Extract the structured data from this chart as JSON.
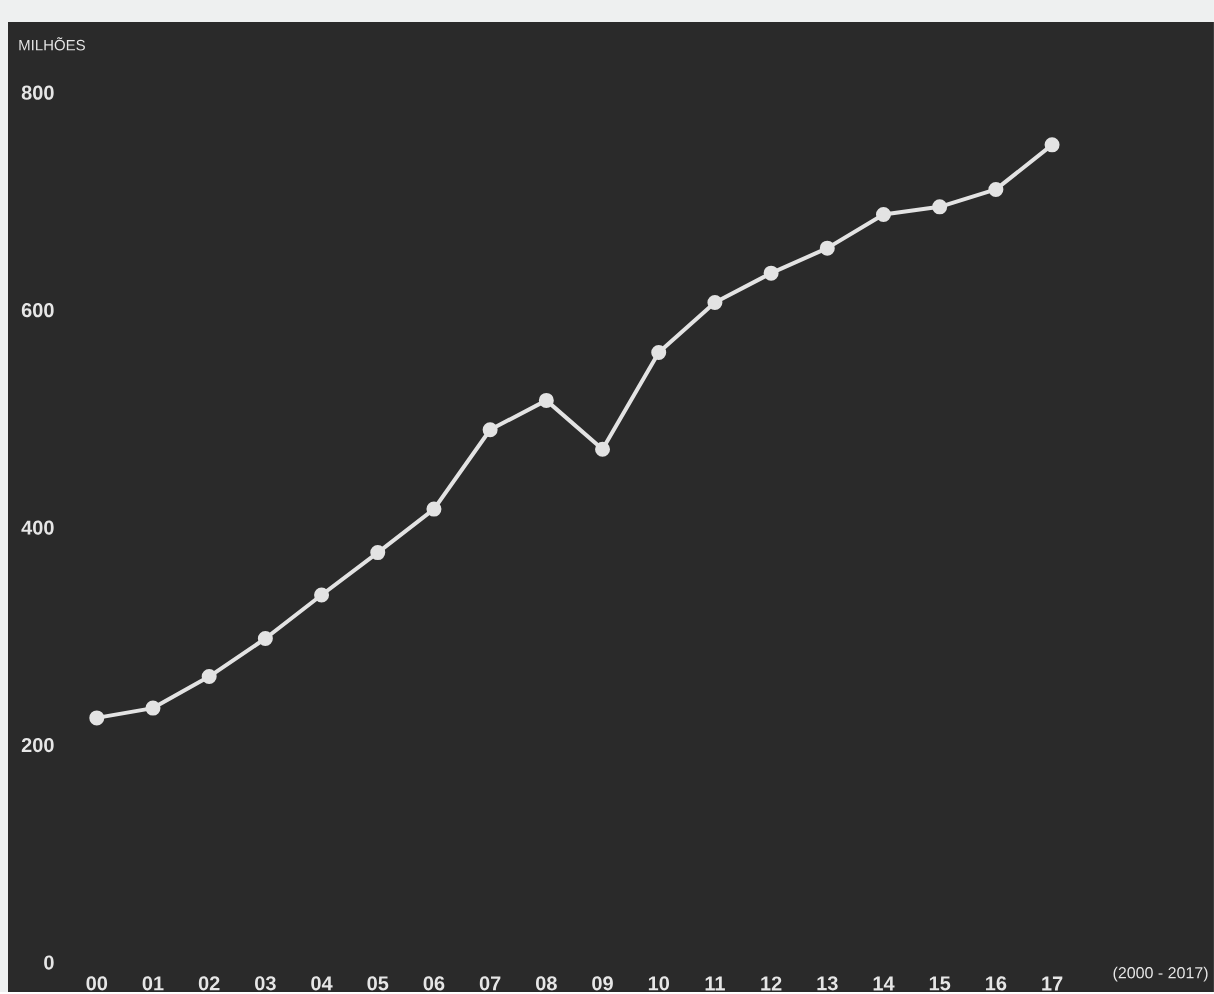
{
  "chart_data": {
    "type": "line",
    "ylabel": "MILHÕES",
    "annotations": [
      "(2000 - 2017)"
    ],
    "categories": [
      "00",
      "01",
      "02",
      "03",
      "04",
      "05",
      "06",
      "07",
      "08",
      "09",
      "10",
      "11",
      "12",
      "13",
      "14",
      "15",
      "16",
      "17"
    ],
    "series": [
      {
        "color": "#e3e3e3",
        "values": [
          225,
          234,
          263,
          298,
          338,
          377,
          417,
          490,
          517,
          472,
          561,
          607,
          634,
          657,
          688,
          695,
          711,
          752
        ]
      }
    ],
    "ylim": [
      -27,
      865
    ],
    "yticks": [
      0,
      200,
      400,
      600,
      800
    ],
    "grid": false,
    "marker": "circle",
    "line_style": "solid"
  }
}
